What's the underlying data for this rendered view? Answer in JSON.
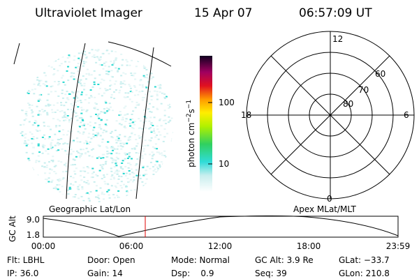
{
  "header": {
    "title": "Ultraviolet Imager",
    "date": "15 Apr 07",
    "time": "06:57:09 UT"
  },
  "colorbar": {
    "label": [
      "photon cm",
      "−2",
      "s",
      "−1"
    ],
    "ticks": [
      "100",
      "10"
    ]
  },
  "polar": {
    "mlt_labels": [
      "12",
      "18",
      "6",
      "0"
    ],
    "lat_labels": [
      "60",
      "70",
      "80"
    ]
  },
  "map_label": "Geographic Lat/Lon",
  "polar_label": "Apex MLat/MLT",
  "altitude": {
    "axis_label": "GC Alt",
    "yticks": [
      "9.0",
      "1.8"
    ],
    "xticks": [
      "00:00",
      "06:00",
      "12:00",
      "18:00",
      "23:59"
    ]
  },
  "info": [
    [
      "Flt: LBHL",
      "Door: Open",
      "Mode: Normal",
      "GC Alt: 3.9 Re",
      "GLat: −33.7"
    ],
    [
      "IP: 36.0",
      "Gain: 14",
      "Dsp:    0.9",
      "Seq: 39",
      "GLon: 210.8"
    ]
  ]
}
